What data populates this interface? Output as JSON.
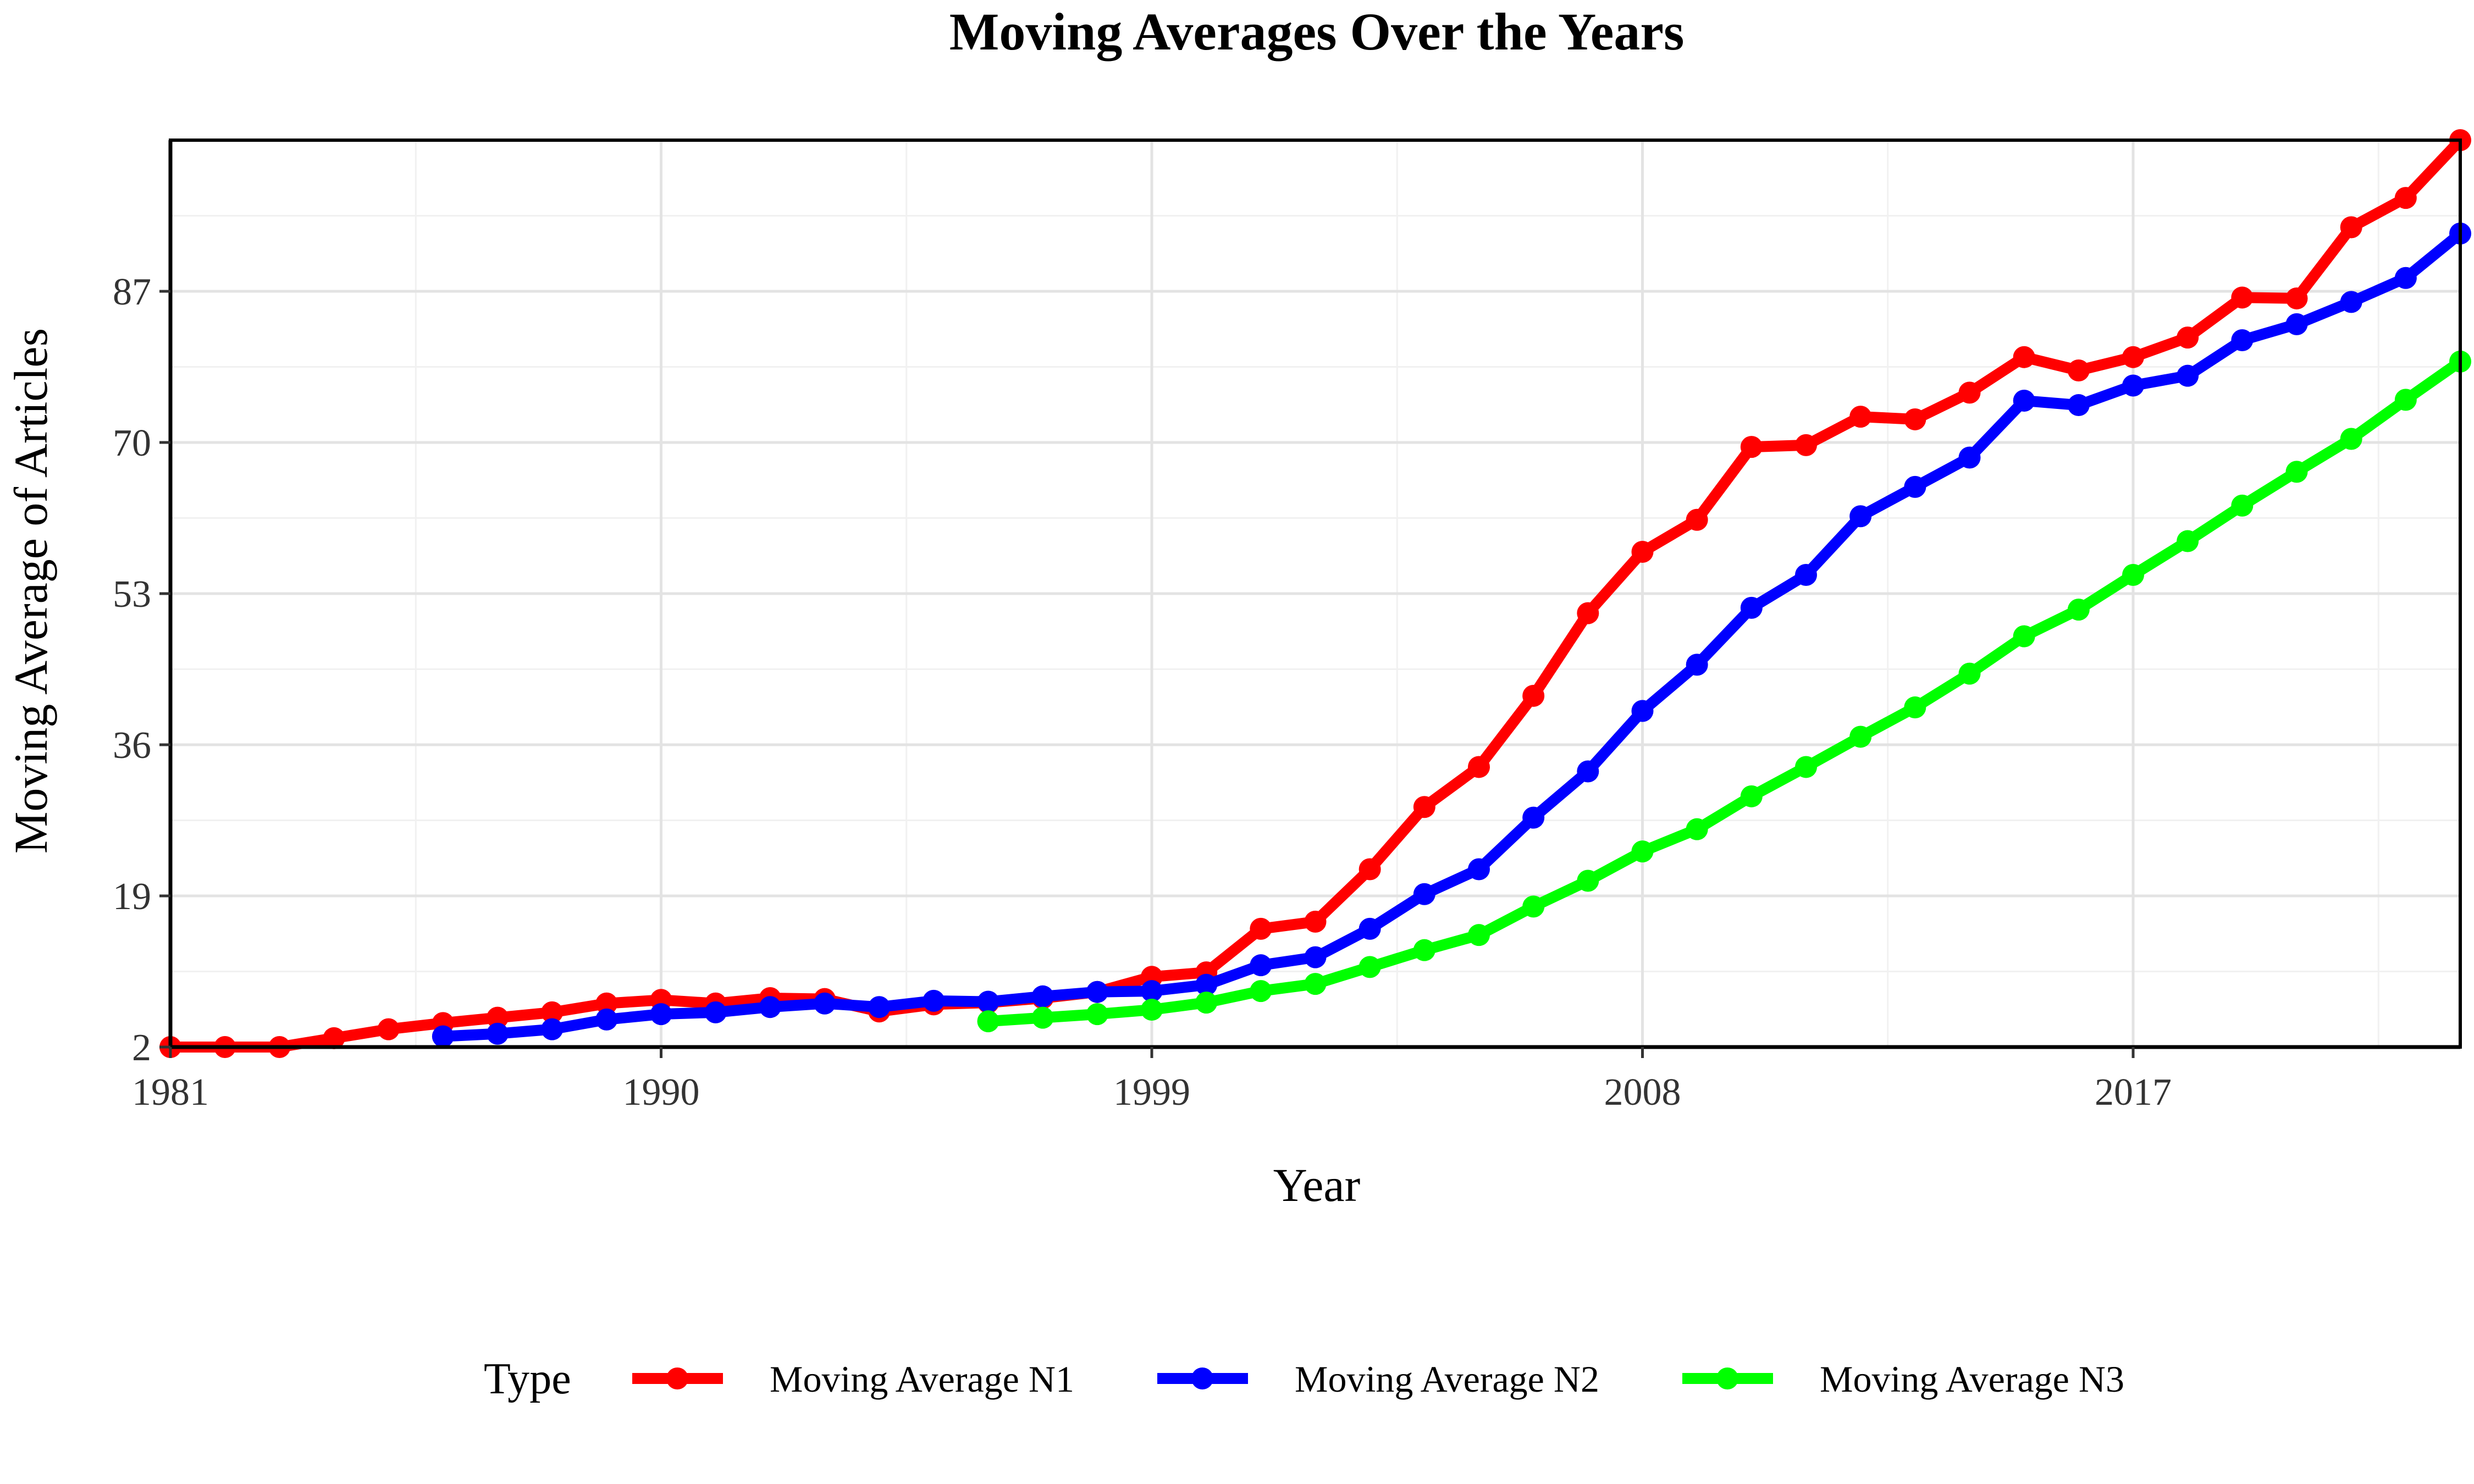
{
  "chart_data": {
    "type": "line",
    "title": "Moving Averages Over the Years",
    "xlabel": "Year",
    "ylabel": "Moving Average of Articles",
    "xlim": [
      1981,
      2023
    ],
    "ylim": [
      2,
      104
    ],
    "x_ticks": [
      1981,
      1990,
      1999,
      2008,
      2017
    ],
    "y_ticks": [
      2,
      19,
      36,
      53,
      70,
      87
    ],
    "grid": true,
    "legend": {
      "title": "Type",
      "position": "bottom"
    },
    "series": [
      {
        "name": "Moving Average N1",
        "color": "#ff0000",
        "x": [
          1981,
          1982,
          1983,
          1984,
          1985,
          1986,
          1987,
          1988,
          1989,
          1990,
          1991,
          1992,
          1993,
          1994,
          1995,
          1996,
          1997,
          1998,
          1999,
          2000,
          2001,
          2002,
          2003,
          2004,
          2005,
          2006,
          2007,
          2008,
          2009,
          2010,
          2011,
          2012,
          2013,
          2014,
          2015,
          2016,
          2017,
          2018,
          2019,
          2020,
          2021,
          2022,
          2023
        ],
        "values": [
          2,
          2,
          2,
          3,
          4,
          4.7,
          5.3,
          5.9,
          6.9,
          7.3,
          6.9,
          7.5,
          7.4,
          6,
          6.8,
          7,
          7.5,
          8.2,
          9.9,
          10.4,
          15.3,
          16.1,
          22,
          29,
          33.5,
          41.5,
          50.8,
          57.7,
          61.3,
          69.5,
          69.7,
          72.9,
          72.6,
          75.6,
          79.6,
          78.1,
          79.6,
          81.8,
          86.3,
          86.2,
          94.2,
          97.5,
          104
        ]
      },
      {
        "name": "Moving Average N2",
        "color": "#0000ff",
        "x": [
          1986,
          1987,
          1988,
          1989,
          1990,
          1991,
          1992,
          1993,
          1994,
          1995,
          1996,
          1997,
          1998,
          1999,
          2000,
          2001,
          2002,
          2003,
          2004,
          2005,
          2006,
          2007,
          2008,
          2009,
          2010,
          2011,
          2012,
          2013,
          2014,
          2015,
          2016,
          2017,
          2018,
          2019,
          2020,
          2021,
          2022,
          2023
        ],
        "values": [
          3.2,
          3.5,
          4,
          5.1,
          5.7,
          5.9,
          6.5,
          6.9,
          6.5,
          7.2,
          7.1,
          7.7,
          8.2,
          8.3,
          9,
          11.2,
          12.1,
          15.3,
          19.2,
          22,
          27.8,
          33,
          39.8,
          45,
          51.4,
          55.1,
          61.7,
          65,
          68.3,
          74.7,
          74.2,
          76.4,
          77.5,
          81.5,
          83.3,
          85.8,
          88.5,
          93.5
        ]
      },
      {
        "name": "Moving Average N3",
        "color": "#00ff00",
        "x": [
          1996,
          1997,
          1998,
          1999,
          2000,
          2001,
          2002,
          2003,
          2004,
          2005,
          2006,
          2007,
          2008,
          2009,
          2010,
          2011,
          2012,
          2013,
          2014,
          2015,
          2016,
          2017,
          2018,
          2019,
          2020,
          2021,
          2022,
          2023
        ],
        "values": [
          4.9,
          5.3,
          5.7,
          6.2,
          7,
          8.3,
          9.1,
          11,
          12.9,
          14.6,
          17.8,
          20.7,
          24,
          26.5,
          30.2,
          33.5,
          36.9,
          40.2,
          44,
          48.2,
          51.2,
          55.1,
          58.9,
          62.9,
          66.7,
          70.4,
          74.8,
          79.1
        ]
      }
    ]
  }
}
